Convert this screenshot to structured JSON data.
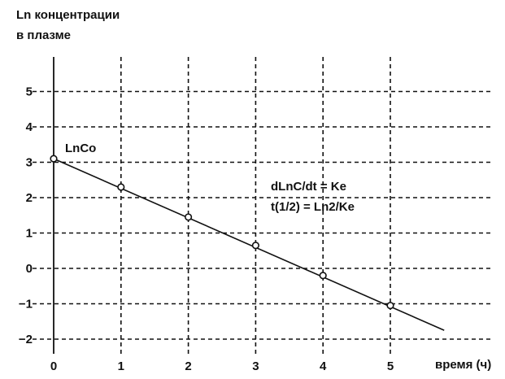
{
  "chart_data": {
    "type": "line",
    "title": "",
    "ylabel_lines": [
      "Ln концентрации",
      "в плазме"
    ],
    "xlabel": "время (ч)",
    "x_ticks": [
      0,
      1,
      2,
      3,
      4,
      5
    ],
    "y_ticks": [
      5,
      4,
      3,
      2,
      1,
      0,
      -1,
      -2
    ],
    "xlim": [
      0,
      5
    ],
    "ylim": [
      -2,
      5
    ],
    "grid": true,
    "series": [
      {
        "points": [
          [
            0,
            3.1
          ],
          [
            1,
            2.3
          ],
          [
            2,
            1.45
          ],
          [
            3,
            0.65
          ],
          [
            4,
            -0.2
          ],
          [
            5,
            -1.05
          ]
        ],
        "line_end": [
          5.8,
          -1.75
        ]
      }
    ],
    "annotations": {
      "start_label": "LnCo",
      "formula_1": "dLnC/dt = Ke",
      "formula_2": "t(1/2) = Ln2/Ke"
    }
  }
}
